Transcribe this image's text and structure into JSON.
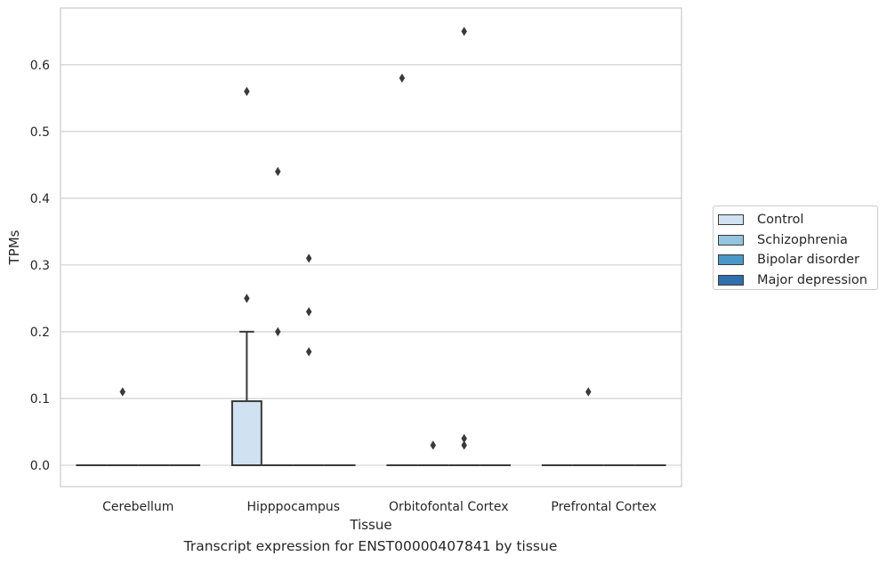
{
  "chart_data": {
    "type": "box",
    "title": "Transcript expression for ENST00000407841 by tissue",
    "xlabel": "Tissue",
    "ylabel": "TPMs",
    "categories": [
      "Cerebellum",
      "Hipppocampus",
      "Orbitofontal Cortex",
      "Prefrontal Cortex"
    ],
    "yticks": [
      "0.0",
      "0.1",
      "0.2",
      "0.3",
      "0.4",
      "0.5",
      "0.6"
    ],
    "ylim": [
      -0.032,
      0.685
    ],
    "grid": true,
    "legend_position": "right",
    "series": [
      {
        "name": "Control",
        "color": "#d0e1f2",
        "boxes": [
          {
            "q1": 0,
            "median": 0,
            "q3": 0,
            "whisker_low": 0,
            "whisker_high": 0,
            "outliers": []
          },
          {
            "q1": 0,
            "median": 0,
            "q3": 0.096,
            "whisker_low": 0,
            "whisker_high": 0.2,
            "outliers": [
              0.56,
              0.25
            ]
          },
          {
            "q1": 0,
            "median": 0,
            "q3": 0,
            "whisker_low": 0,
            "whisker_high": 0,
            "outliers": [
              0.58
            ]
          },
          {
            "q1": 0,
            "median": 0,
            "q3": 0,
            "whisker_low": 0,
            "whisker_high": 0,
            "outliers": []
          }
        ]
      },
      {
        "name": "Schizophrenia",
        "color": "#94c4df",
        "boxes": [
          {
            "q1": 0,
            "median": 0,
            "q3": 0,
            "whisker_low": 0,
            "whisker_high": 0,
            "outliers": [
              0.11
            ]
          },
          {
            "q1": 0,
            "median": 0,
            "q3": 0,
            "whisker_low": 0,
            "whisker_high": 0,
            "outliers": [
              0.44,
              0.2
            ]
          },
          {
            "q1": 0,
            "median": 0,
            "q3": 0,
            "whisker_low": 0,
            "whisker_high": 0,
            "outliers": [
              0.03
            ]
          },
          {
            "q1": 0,
            "median": 0,
            "q3": 0,
            "whisker_low": 0,
            "whisker_high": 0,
            "outliers": [
              0.11
            ]
          }
        ]
      },
      {
        "name": "Bipolar disorder",
        "color": "#4a98c9",
        "boxes": [
          {
            "q1": 0,
            "median": 0,
            "q3": 0,
            "whisker_low": 0,
            "whisker_high": 0,
            "outliers": []
          },
          {
            "q1": 0,
            "median": 0,
            "q3": 0,
            "whisker_low": 0,
            "whisker_high": 0,
            "outliers": [
              0.31,
              0.23,
              0.17
            ]
          },
          {
            "q1": 0,
            "median": 0,
            "q3": 0,
            "whisker_low": 0,
            "whisker_high": 0,
            "outliers": [
              0.65,
              0.04,
              0.03
            ]
          },
          {
            "q1": 0,
            "median": 0,
            "q3": 0,
            "whisker_low": 0,
            "whisker_high": 0,
            "outliers": []
          }
        ]
      },
      {
        "name": "Major depression",
        "color": "#2e6fac",
        "boxes": [
          {
            "q1": 0,
            "median": 0,
            "q3": 0,
            "whisker_low": 0,
            "whisker_high": 0,
            "outliers": []
          },
          {
            "q1": 0,
            "median": 0,
            "q3": 0,
            "whisker_low": 0,
            "whisker_high": 0,
            "outliers": []
          },
          {
            "q1": 0,
            "median": 0,
            "q3": 0,
            "whisker_low": 0,
            "whisker_high": 0,
            "outliers": []
          },
          {
            "q1": 0,
            "median": 0,
            "q3": 0,
            "whisker_low": 0,
            "whisker_high": 0,
            "outliers": []
          }
        ]
      }
    ]
  },
  "colors": {
    "grid": "#cccccc",
    "frame": "#cccccc",
    "box_edge": "#3a3a3a",
    "text": "#262626"
  }
}
